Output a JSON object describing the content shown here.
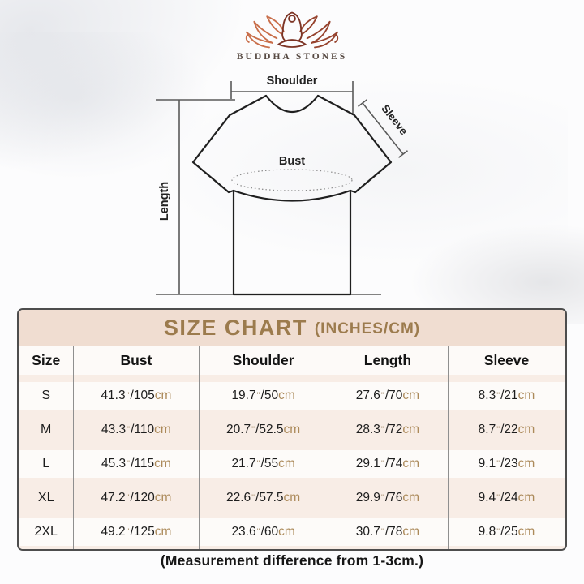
{
  "brand": {
    "name": "BUDDHA STONES"
  },
  "diagram": {
    "labels": {
      "shoulder": "Shoulder",
      "sleeve": "Sleeve",
      "bust": "Bust",
      "length": "Length"
    }
  },
  "size_chart": {
    "title": "SIZE CHART",
    "title_suffix": "(INCHES/CM)",
    "columns": [
      "Size",
      "Bust",
      "Shoulder",
      "Length",
      "Sleeve"
    ],
    "inch_mark": "\"",
    "cm_unit": "cm",
    "rows": [
      {
        "size": "S",
        "bust": {
          "in": "41.3",
          "cm": "105"
        },
        "shoulder": {
          "in": "19.7",
          "cm": "50"
        },
        "length": {
          "in": "27.6",
          "cm": "70"
        },
        "sleeve": {
          "in": "8.3",
          "cm": "21"
        }
      },
      {
        "size": "M",
        "bust": {
          "in": "43.3",
          "cm": "110"
        },
        "shoulder": {
          "in": "20.7",
          "cm": "52.5"
        },
        "length": {
          "in": "28.3",
          "cm": "72"
        },
        "sleeve": {
          "in": "8.7",
          "cm": "22"
        }
      },
      {
        "size": "L",
        "bust": {
          "in": "45.3",
          "cm": "115"
        },
        "shoulder": {
          "in": "21.7",
          "cm": "55"
        },
        "length": {
          "in": "29.1",
          "cm": "74"
        },
        "sleeve": {
          "in": "9.1",
          "cm": "23"
        }
      },
      {
        "size": "XL",
        "bust": {
          "in": "47.2",
          "cm": "120"
        },
        "shoulder": {
          "in": "22.6",
          "cm": "57.5"
        },
        "length": {
          "in": "29.9",
          "cm": "76"
        },
        "sleeve": {
          "in": "9.4",
          "cm": "24"
        }
      },
      {
        "size": "2XL",
        "bust": {
          "in": "49.2",
          "cm": "125"
        },
        "shoulder": {
          "in": "23.6",
          "cm": "60"
        },
        "length": {
          "in": "30.7",
          "cm": "78"
        },
        "sleeve": {
          "in": "9.8",
          "cm": "25"
        }
      }
    ]
  },
  "footnote": "(Measurement difference from 1-3cm.)",
  "colors": {
    "gold": "#9c7b4d",
    "title_bg": "#f0ddd1",
    "row_pink": "#f8ede6",
    "cm_tan": "#ac8a5a",
    "inch_mark": "#a89274",
    "text_dark": "#1d1d1d",
    "table_border": "#4d4d4d",
    "column_divider": "#8f8f8f"
  }
}
